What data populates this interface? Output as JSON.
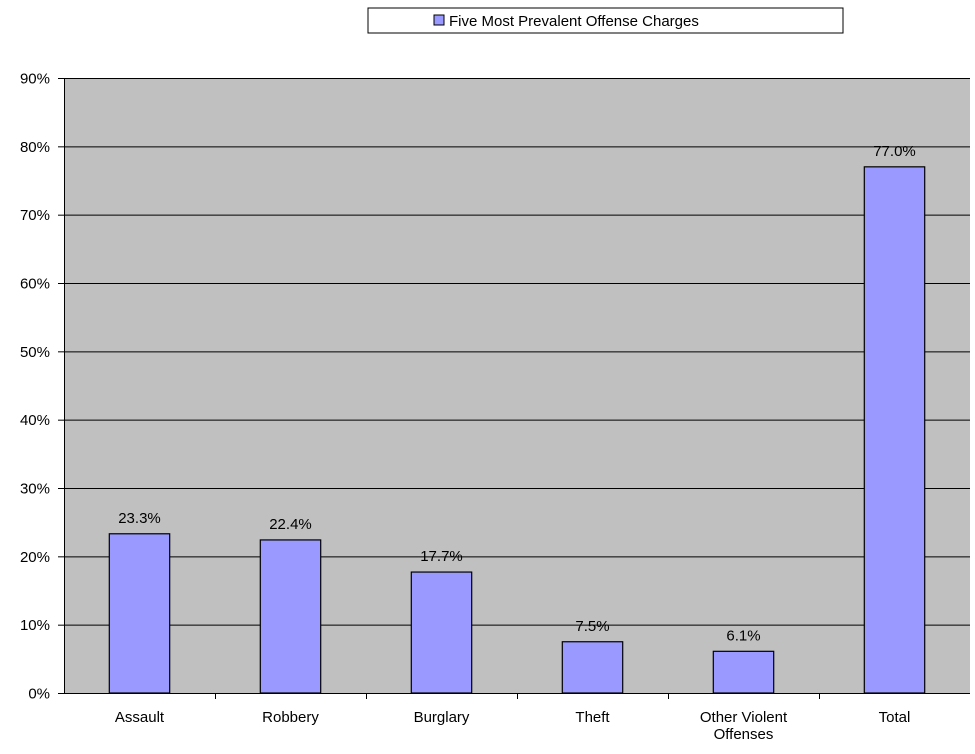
{
  "chart_data": {
    "type": "bar",
    "title": "",
    "xlabel": "",
    "ylabel": "",
    "categories": [
      [
        "Assault"
      ],
      [
        "Robbery"
      ],
      [
        "Burglary"
      ],
      [
        "Theft"
      ],
      [
        "Other Violent",
        "Offenses"
      ],
      [
        "Total"
      ]
    ],
    "series": [
      {
        "name": "Five Most Prevalent Offense Charges",
        "values": [
          23.3,
          22.4,
          17.7,
          7.5,
          6.1,
          77.0
        ],
        "labels": [
          "23.3%",
          "22.4%",
          "17.7%",
          "7.5%",
          "6.1%",
          "77.0%"
        ]
      }
    ],
    "ylim": [
      0,
      90
    ],
    "yticks": [
      0,
      10,
      20,
      30,
      40,
      50,
      60,
      70,
      80,
      90
    ],
    "ytick_labels": [
      "0%",
      "10%",
      "20%",
      "30%",
      "40%",
      "50%",
      "60%",
      "70%",
      "80%",
      "90%"
    ],
    "grid": true,
    "legend_position": "top",
    "colors": {
      "bar_fill": "#9999ff",
      "plot_background": "#c0c0c0",
      "gridline": "#000000"
    }
  }
}
